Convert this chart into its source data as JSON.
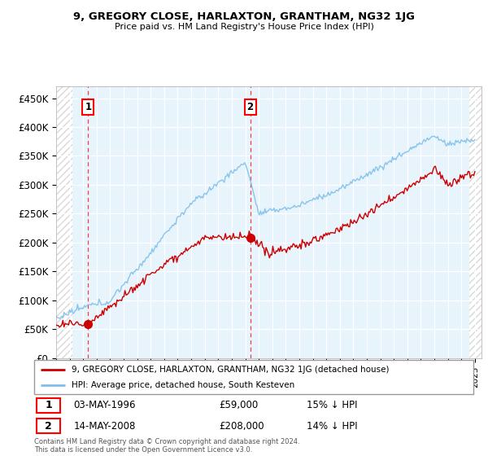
{
  "title": "9, GREGORY CLOSE, HARLAXTON, GRANTHAM, NG32 1JG",
  "subtitle": "Price paid vs. HM Land Registry's House Price Index (HPI)",
  "ylabel_ticks": [
    "£0",
    "£50K",
    "£100K",
    "£150K",
    "£200K",
    "£250K",
    "£300K",
    "£350K",
    "£400K",
    "£450K"
  ],
  "ylim": [
    0,
    470000
  ],
  "xlim_start": 1994.0,
  "xlim_end": 2025.5,
  "hpi_color": "#7fbfea",
  "price_color": "#cc0000",
  "hatch_color": "#d8d8d8",
  "plot_bg_color": "#e8f4fc",
  "grid_color": "#ffffff",
  "transaction1": {
    "date": "03-MAY-1996",
    "price": 59000,
    "label": "1",
    "year": 1996.37
  },
  "transaction2": {
    "date": "14-MAY-2008",
    "price": 208000,
    "label": "2",
    "year": 2008.37
  },
  "legend_line1": "9, GREGORY CLOSE, HARLAXTON, GRANTHAM, NG32 1JG (detached house)",
  "legend_line2": "HPI: Average price, detached house, South Kesteven",
  "table_row1": [
    "1",
    "03-MAY-1996",
    "£59,000",
    "15% ↓ HPI"
  ],
  "table_row2": [
    "2",
    "14-MAY-2008",
    "£208,000",
    "14% ↓ HPI"
  ],
  "footer": "Contains HM Land Registry data © Crown copyright and database right 2024.\nThis data is licensed under the Open Government Licence v3.0."
}
